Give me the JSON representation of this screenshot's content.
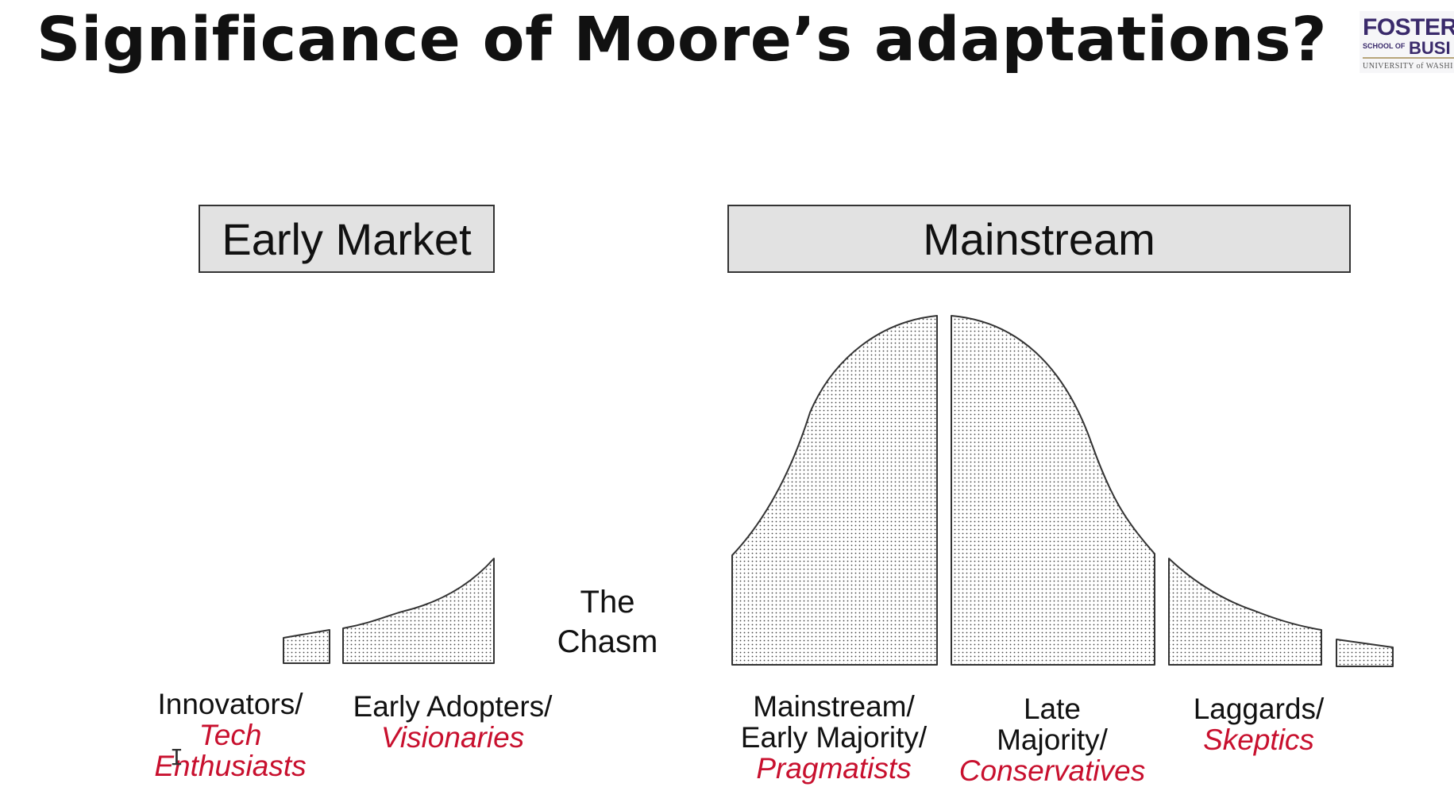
{
  "slide": {
    "title": "Significance of Moore’s adaptations?"
  },
  "logo": {
    "line1": "FOSTER",
    "line2a": "SCHOOL OF",
    "line2b": "BUSI",
    "line3": "UNIVERSITY of WASHI",
    "color": "#3a2a6b"
  },
  "diagram": {
    "early_market_label": "Early Market",
    "mainstream_label": "Mainstream",
    "chasm_line1": "The",
    "chasm_line2": "Chasm",
    "segments": [
      {
        "group_lines": [
          "Innovators/"
        ],
        "role_lines": [
          "Tech",
          "Enthusiasts"
        ]
      },
      {
        "group_lines": [
          "Early Adopters/"
        ],
        "role_lines": [
          "Visionaries"
        ]
      },
      {
        "group_lines": [
          "Mainstream/",
          "Early Majority/"
        ],
        "role_lines": [
          "Pragmatists"
        ]
      },
      {
        "group_lines": [
          "Late",
          "Majority/"
        ],
        "role_lines": [
          "Conservatives"
        ]
      },
      {
        "group_lines": [
          "Laggards/"
        ],
        "role_lines": [
          "Skeptics"
        ]
      }
    ],
    "role_color": "#c8102e",
    "box_fill": "#e2e2e2"
  }
}
